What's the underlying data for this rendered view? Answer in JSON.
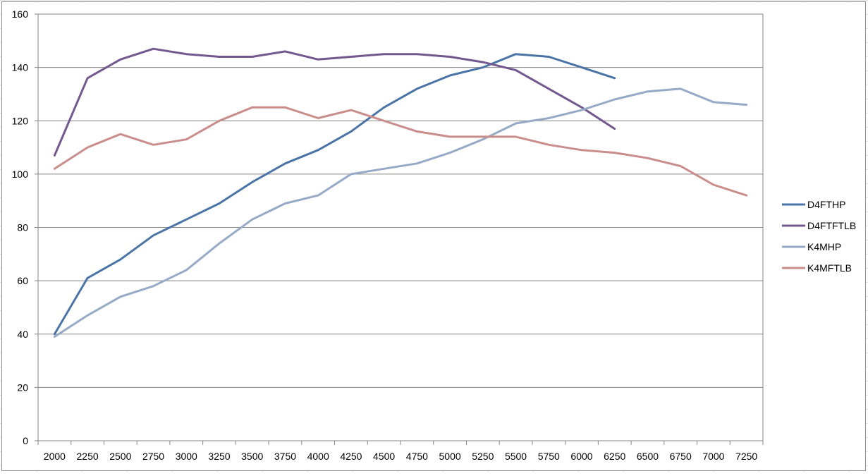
{
  "chart_data": {
    "type": "line",
    "title": "",
    "xlabel": "",
    "ylabel": "",
    "categories": [
      "2000",
      "2250",
      "2500",
      "2750",
      "3000",
      "3250",
      "3500",
      "3750",
      "4000",
      "4250",
      "4500",
      "4750",
      "5000",
      "5250",
      "5500",
      "5750",
      "6000",
      "6250",
      "6500",
      "6750",
      "7000",
      "7250"
    ],
    "ylim": [
      0,
      160
    ],
    "yticks": [
      0,
      20,
      40,
      60,
      80,
      100,
      120,
      140,
      160
    ],
    "grid": true,
    "legend_position": "right",
    "series": [
      {
        "name": "D4FTHP",
        "color": "#4a74a6",
        "values": [
          40,
          61,
          68,
          77,
          83,
          89,
          97,
          104,
          109,
          116,
          125,
          132,
          137,
          140,
          145,
          144,
          140,
          136,
          null,
          null,
          null,
          null
        ]
      },
      {
        "name": "D4FTFTLB",
        "color": "#73588f",
        "values": [
          107,
          136,
          143,
          147,
          145,
          144,
          144,
          146,
          143,
          144,
          145,
          145,
          144,
          142,
          139,
          132,
          125,
          117,
          null,
          null,
          null,
          null
        ]
      },
      {
        "name": "K4MHP",
        "color": "#96aac8",
        "values": [
          39,
          47,
          54,
          58,
          64,
          74,
          83,
          89,
          92,
          100,
          102,
          104,
          108,
          113,
          119,
          121,
          124,
          128,
          131,
          132,
          127,
          126
        ]
      },
      {
        "name": "K4MFTLB",
        "color": "#c98e8c",
        "values": [
          102,
          110,
          115,
          111,
          113,
          120,
          125,
          125,
          121,
          124,
          120,
          116,
          114,
          114,
          114,
          111,
          109,
          108,
          106,
          103,
          96,
          92
        ]
      }
    ]
  }
}
